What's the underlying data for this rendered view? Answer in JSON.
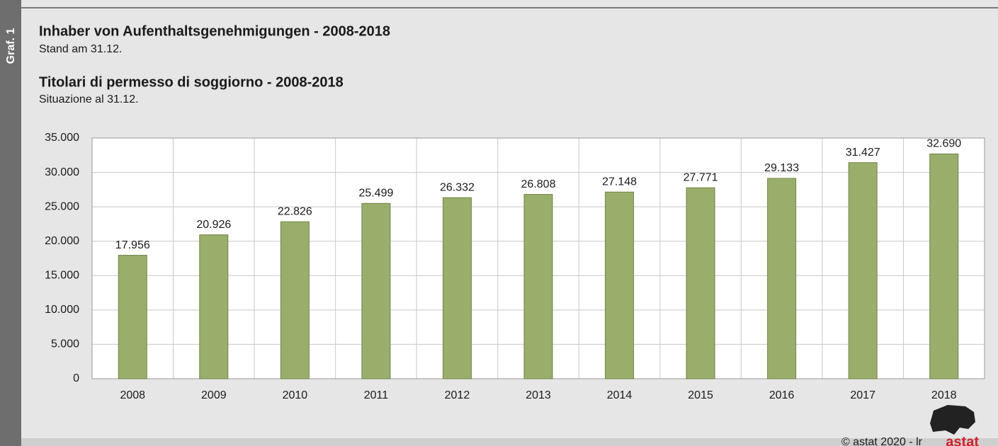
{
  "chart_data": {
    "type": "bar",
    "label": "Graf. 1",
    "title": "Inhaber von Aufenthaltsgenehmigungen - 2008-2018",
    "subtitle": "Stand am 31.12.",
    "title_it": "Titolari di permesso di soggiorno - 2008-2018",
    "subtitle_it": "Situazione al 31.12.",
    "categories": [
      "2008",
      "2009",
      "2010",
      "2011",
      "2012",
      "2013",
      "2014",
      "2015",
      "2016",
      "2017",
      "2018"
    ],
    "values": [
      17956,
      20926,
      22826,
      25499,
      26332,
      26808,
      27148,
      27771,
      29133,
      31427,
      32690
    ],
    "value_labels": [
      "17.956",
      "20.926",
      "22.826",
      "25.499",
      "26.332",
      "26.808",
      "27.148",
      "27.771",
      "29.133",
      "31.427",
      "32.690"
    ],
    "color": "#9aae6b",
    "ylim": [
      0,
      35000
    ],
    "yticks": [
      0,
      {
        "value": 5000,
        "label": "5.000"
      },
      {
        "value": 10000,
        "label": "10.000"
      },
      {
        "value": 15000,
        "label": "15.000"
      },
      {
        "value": 20000,
        "label": "20.000"
      },
      {
        "value": 25000,
        "label": "25.000"
      },
      {
        "value": 30000,
        "label": "30.000"
      },
      {
        "value": 35000,
        "label": "35.000"
      }
    ],
    "grid": true,
    "source": "© astat 2020 - lr",
    "logo": "astat"
  }
}
